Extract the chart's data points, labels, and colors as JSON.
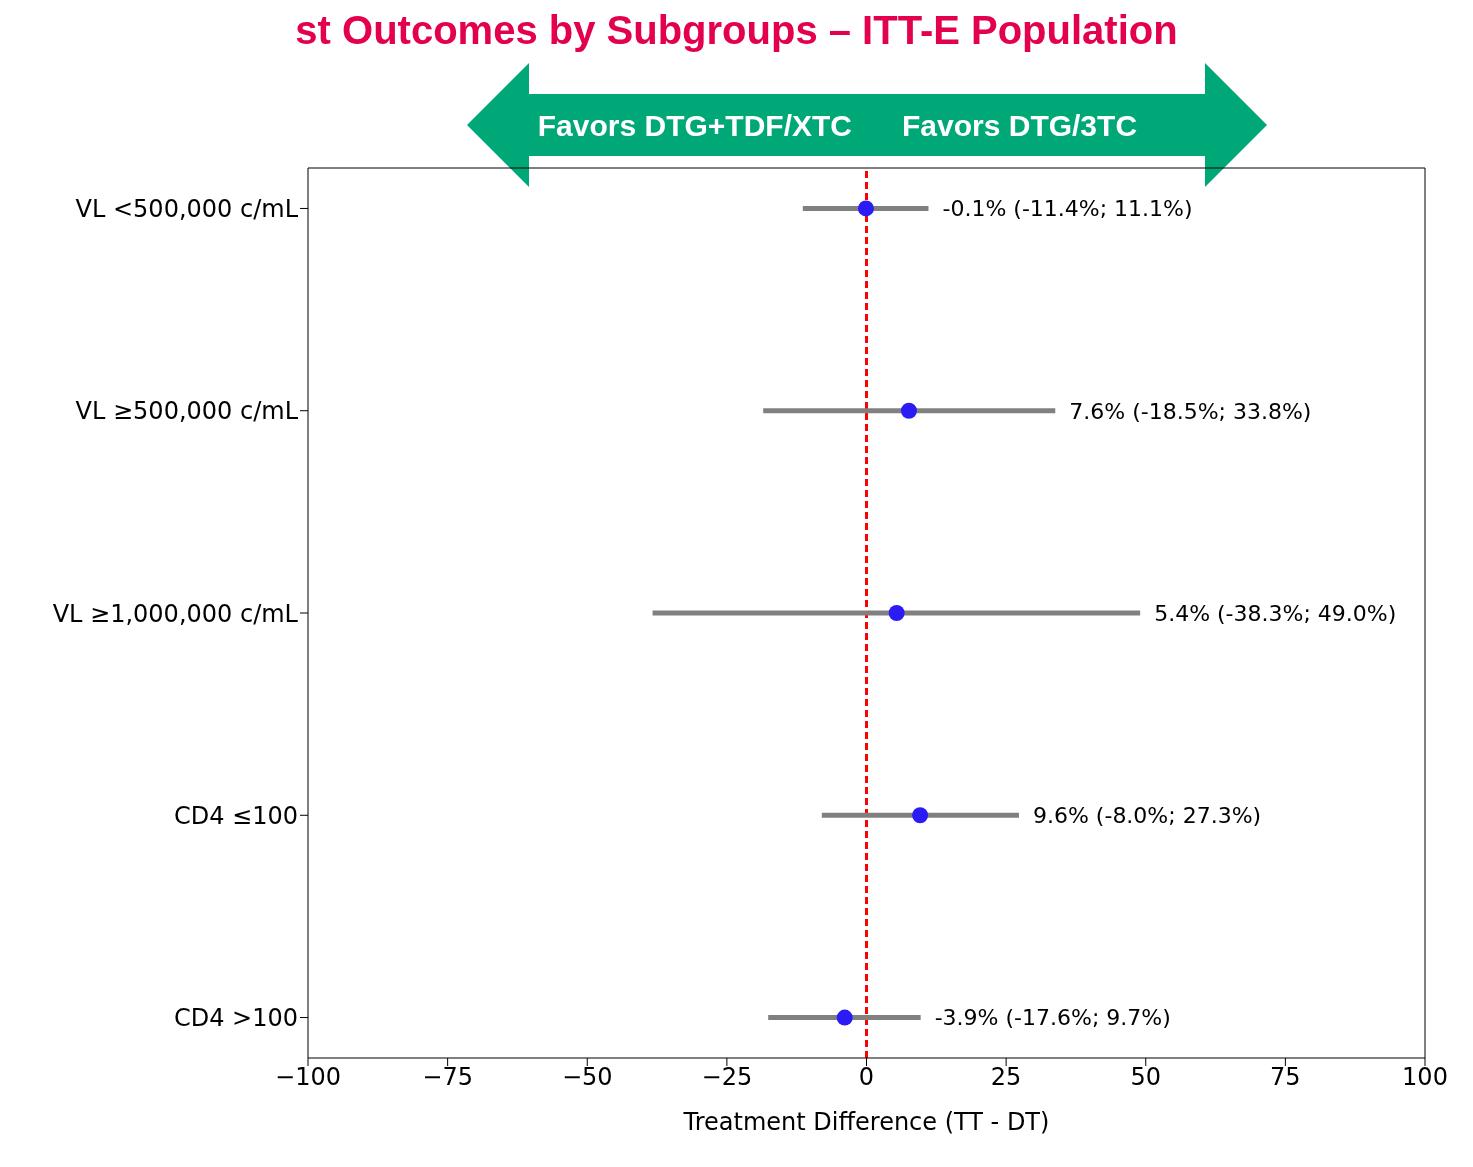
{
  "chart_data": {
    "type": "scatter",
    "orientation": "horizontal",
    "title": "st Outcomes by Subgroups – ITT-E Population",
    "xlabel": "Treatment Difference (TT - DT)",
    "categories": [
      "VL <500,000 c/mL",
      "VL ≥500,000 c/mL",
      "VL ≥1,000,000 c/mL",
      "CD4 ≤100",
      "CD4 >100"
    ],
    "color": "#2b1cf5",
    "values": [
      -0.1,
      7.6,
      5.4,
      9.6,
      -3.9
    ],
    "errors": [
      [
        -11.4,
        11.1
      ],
      [
        -18.5,
        33.8
      ],
      [
        -38.3,
        49.0
      ],
      [
        -8.0,
        27.3
      ],
      [
        -17.6,
        9.7
      ]
    ],
    "xlim": [
      -100,
      100
    ],
    "xticks": [
      {
        "value": -100,
        "label": "−100"
      },
      {
        "value": -75,
        "label": "−75"
      },
      {
        "value": -50,
        "label": "−50"
      },
      {
        "value": -25,
        "label": "−25"
      },
      0,
      25,
      50,
      75,
      100
    ],
    "ref_lines": [
      {
        "axis": "x",
        "value": 0,
        "color": "#ff0000",
        "line_style": "dashed"
      }
    ],
    "annotations": [
      "Favors DTG+TDF/XTC",
      "Favors DTG/3TC",
      {
        "text": "-0.1% (-11.4%; 11.1%)",
        "x": 11.1,
        "y": "VL <500,000 c/mL"
      },
      {
        "text": "7.6% (-18.5%; 33.8%)",
        "x": 33.8,
        "y": "VL ≥500,000 c/mL"
      },
      {
        "text": "5.4% (-38.3%; 49.0%)",
        "x": 49.0,
        "y": "VL ≥1,000,000 c/mL"
      },
      {
        "text": "9.6% (-8.0%; 27.3%)",
        "x": 27.3,
        "y": "CD4 ≤100"
      },
      {
        "text": "-3.9% (-17.6%; 9.7%)",
        "x": 9.7,
        "y": "CD4 >100"
      }
    ],
    "marker": "circle",
    "grid": false,
    "legend": false
  }
}
